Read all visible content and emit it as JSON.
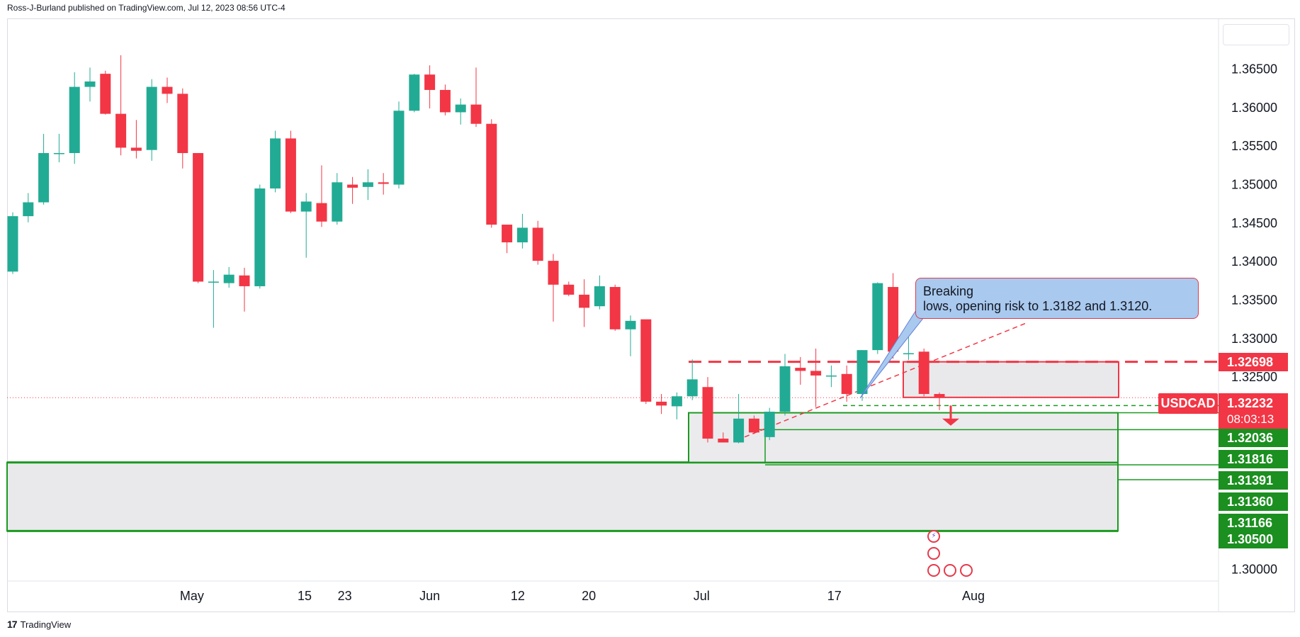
{
  "header": "Ross-J-Burland published on TradingView.com, Jul 12, 2023 08:56 UTC-4",
  "footer_logo": "TradingView",
  "symbol": "USDCAD",
  "current_price": "1.32232",
  "countdown": "08:03:13",
  "annotation": "Breaking\nlows, opening risk to 1.3182 and 1.3120.",
  "colors": {
    "up": "#22ab94",
    "down": "#f23645",
    "zone_line": "#1b9a20",
    "zone_fill": "#e9e9ec",
    "callout": "#a9c9ee"
  },
  "price_labels": [
    {
      "value": "1.32698",
      "color": "#f23645"
    },
    {
      "value": "1.32036",
      "color": "#1b8f1f"
    },
    {
      "value": "1.31816",
      "color": "#1b8f1f"
    },
    {
      "value": "1.31391",
      "color": "#1b8f1f"
    },
    {
      "value": "1.31360",
      "color": "#1b8f1f"
    },
    {
      "value": "1.31166",
      "color": "#1b8f1f"
    },
    {
      "value": "1.30500",
      "color": "#1b8f1f"
    }
  ],
  "event_icons": [
    "lightning-icon",
    "us-flag-icon",
    "ca-flag-icon",
    "us-flag-icon",
    "us-flag-icon"
  ],
  "chart_data": {
    "type": "candlestick",
    "series": [
      {
        "name": "USDCAD"
      }
    ],
    "y_ticks": [
      "1.36500",
      "1.36000",
      "1.35500",
      "1.35000",
      "1.34500",
      "1.34000",
      "1.33500",
      "1.33000",
      "1.32500",
      "1.30000"
    ],
    "x_ticks": [
      "May",
      "15",
      "23",
      "Jun",
      "12",
      "20",
      "Jul",
      "17",
      "Aug"
    ],
    "ylim": [
      1.2985,
      1.3715
    ],
    "candles": [
      {
        "o": 1.3387,
        "h": 1.3464,
        "l": 1.3384,
        "c": 1.3459
      },
      {
        "o": 1.3459,
        "h": 1.3489,
        "l": 1.3451,
        "c": 1.3477
      },
      {
        "o": 1.3477,
        "h": 1.3566,
        "l": 1.3474,
        "c": 1.3541
      },
      {
        "o": 1.3541,
        "h": 1.3566,
        "l": 1.3529,
        "c": 1.3541
      },
      {
        "o": 1.3541,
        "h": 1.3646,
        "l": 1.3527,
        "c": 1.3627
      },
      {
        "o": 1.3627,
        "h": 1.3652,
        "l": 1.3608,
        "c": 1.3634
      },
      {
        "o": 1.3644,
        "h": 1.3648,
        "l": 1.3591,
        "c": 1.3592
      },
      {
        "o": 1.3592,
        "h": 1.3668,
        "l": 1.3538,
        "c": 1.3548
      },
      {
        "o": 1.3548,
        "h": 1.3584,
        "l": 1.3534,
        "c": 1.3544
      },
      {
        "o": 1.3545,
        "h": 1.3637,
        "l": 1.3531,
        "c": 1.3627
      },
      {
        "o": 1.3627,
        "h": 1.3639,
        "l": 1.3606,
        "c": 1.3618
      },
      {
        "o": 1.3618,
        "h": 1.3625,
        "l": 1.3521,
        "c": 1.3541
      },
      {
        "o": 1.3541,
        "h": 1.3541,
        "l": 1.3372,
        "c": 1.3374
      },
      {
        "o": 1.3374,
        "h": 1.3389,
        "l": 1.3314,
        "c": 1.3374
      },
      {
        "o": 1.3372,
        "h": 1.3393,
        "l": 1.3366,
        "c": 1.3383
      },
      {
        "o": 1.3382,
        "h": 1.3392,
        "l": 1.3335,
        "c": 1.3368
      },
      {
        "o": 1.3368,
        "h": 1.35,
        "l": 1.3365,
        "c": 1.3495
      },
      {
        "o": 1.3495,
        "h": 1.357,
        "l": 1.349,
        "c": 1.356
      },
      {
        "o": 1.356,
        "h": 1.357,
        "l": 1.3463,
        "c": 1.3465
      },
      {
        "o": 1.3465,
        "h": 1.3489,
        "l": 1.3405,
        "c": 1.3478
      },
      {
        "o": 1.3476,
        "h": 1.3525,
        "l": 1.3445,
        "c": 1.3452
      },
      {
        "o": 1.3452,
        "h": 1.3515,
        "l": 1.3448,
        "c": 1.3503
      },
      {
        "o": 1.35,
        "h": 1.351,
        "l": 1.3475,
        "c": 1.3496
      },
      {
        "o": 1.3497,
        "h": 1.352,
        "l": 1.348,
        "c": 1.3503
      },
      {
        "o": 1.3503,
        "h": 1.3515,
        "l": 1.3487,
        "c": 1.3501
      },
      {
        "o": 1.35,
        "h": 1.3608,
        "l": 1.3495,
        "c": 1.3596
      },
      {
        "o": 1.3596,
        "h": 1.3644,
        "l": 1.3594,
        "c": 1.3643
      },
      {
        "o": 1.3643,
        "h": 1.3655,
        "l": 1.3599,
        "c": 1.3623
      },
      {
        "o": 1.3623,
        "h": 1.363,
        "l": 1.359,
        "c": 1.3594
      },
      {
        "o": 1.3594,
        "h": 1.3612,
        "l": 1.3578,
        "c": 1.3604
      },
      {
        "o": 1.3604,
        "h": 1.3652,
        "l": 1.3575,
        "c": 1.3579
      },
      {
        "o": 1.3579,
        "h": 1.3585,
        "l": 1.3444,
        "c": 1.3448
      },
      {
        "o": 1.3448,
        "h": 1.3448,
        "l": 1.3411,
        "c": 1.3425
      },
      {
        "o": 1.3425,
        "h": 1.3462,
        "l": 1.3417,
        "c": 1.3444
      },
      {
        "o": 1.3444,
        "h": 1.3453,
        "l": 1.3396,
        "c": 1.3401
      },
      {
        "o": 1.3401,
        "h": 1.341,
        "l": 1.3322,
        "c": 1.337
      },
      {
        "o": 1.337,
        "h": 1.3374,
        "l": 1.3355,
        "c": 1.3357
      },
      {
        "o": 1.3357,
        "h": 1.3377,
        "l": 1.3315,
        "c": 1.334
      },
      {
        "o": 1.3342,
        "h": 1.3382,
        "l": 1.3338,
        "c": 1.3368
      },
      {
        "o": 1.3367,
        "h": 1.337,
        "l": 1.331,
        "c": 1.3312
      },
      {
        "o": 1.3312,
        "h": 1.333,
        "l": 1.3277,
        "c": 1.3323
      },
      {
        "o": 1.3325,
        "h": 1.3324,
        "l": 1.3215,
        "c": 1.3218
      },
      {
        "o": 1.3218,
        "h": 1.3228,
        "l": 1.3202,
        "c": 1.3213
      },
      {
        "o": 1.3212,
        "h": 1.323,
        "l": 1.3195,
        "c": 1.3225
      },
      {
        "o": 1.3225,
        "h": 1.3273,
        "l": 1.322,
        "c": 1.3247
      },
      {
        "o": 1.3237,
        "h": 1.325,
        "l": 1.3165,
        "c": 1.317
      },
      {
        "o": 1.317,
        "h": 1.3178,
        "l": 1.3166,
        "c": 1.3165
      },
      {
        "o": 1.3165,
        "h": 1.3228,
        "l": 1.3164,
        "c": 1.3196
      },
      {
        "o": 1.3196,
        "h": 1.32,
        "l": 1.3176,
        "c": 1.3178
      },
      {
        "o": 1.3172,
        "h": 1.321,
        "l": 1.3168,
        "c": 1.3205
      },
      {
        "o": 1.3205,
        "h": 1.328,
        "l": 1.32,
        "c": 1.3264
      },
      {
        "o": 1.3262,
        "h": 1.3276,
        "l": 1.324,
        "c": 1.3258
      },
      {
        "o": 1.3258,
        "h": 1.3287,
        "l": 1.3211,
        "c": 1.3252
      },
      {
        "o": 1.3252,
        "h": 1.3265,
        "l": 1.3237,
        "c": 1.3252
      },
      {
        "o": 1.3254,
        "h": 1.3265,
        "l": 1.3218,
        "c": 1.3228
      },
      {
        "o": 1.3228,
        "h": 1.3285,
        "l": 1.3219,
        "c": 1.3285
      },
      {
        "o": 1.3285,
        "h": 1.3373,
        "l": 1.328,
        "c": 1.3372
      },
      {
        "o": 1.3367,
        "h": 1.3385,
        "l": 1.3274,
        "c": 1.3283
      },
      {
        "o": 1.328,
        "h": 1.3304,
        "l": 1.3272,
        "c": 1.3281
      },
      {
        "o": 1.3283,
        "h": 1.3287,
        "l": 1.3225,
        "c": 1.3228
      },
      {
        "o": 1.3228,
        "h": 1.323,
        "l": 1.3207,
        "c": 1.3223
      }
    ],
    "support_zones": [
      [
        1.31391,
        1.32036
      ],
      [
        1.305,
        1.31391
      ]
    ],
    "resistance_zone": [
      1.32236,
      1.32698
    ],
    "levels": [
      1.32698,
      1.32036,
      1.31816,
      1.3136,
      1.31166,
      1.305
    ]
  }
}
